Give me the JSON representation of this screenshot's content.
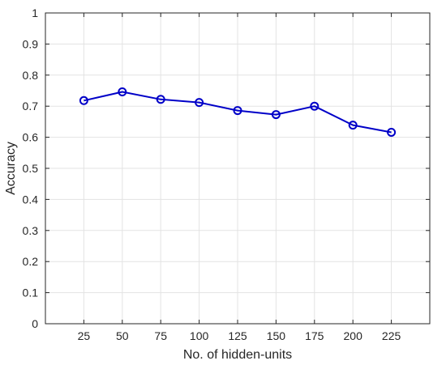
{
  "chart_data": {
    "type": "line",
    "title": "",
    "xlabel": "No. of hidden-units",
    "ylabel": "Accuracy",
    "x": [
      25,
      50,
      75,
      100,
      125,
      150,
      175,
      200,
      225
    ],
    "x_tick_labels": [
      "25",
      "50",
      "75",
      "100",
      "125",
      "150",
      "175",
      "200",
      "225"
    ],
    "xlim": [
      0,
      250
    ],
    "ylim": [
      0,
      1
    ],
    "y_ticks": [
      0,
      0.1,
      0.2,
      0.3,
      0.4,
      0.5,
      0.6,
      0.7,
      0.8,
      0.9,
      1
    ],
    "y_tick_labels": [
      "0",
      "0.1",
      "0.2",
      "0.3",
      "0.4",
      "0.5",
      "0.6",
      "0.7",
      "0.8",
      "0.9",
      "1"
    ],
    "grid": true,
    "legend": "none",
    "series": [
      {
        "values": [
          0.718,
          0.746,
          0.722,
          0.712,
          0.686,
          0.673,
          0.7,
          0.639,
          0.616
        ],
        "color": "#0000c8",
        "marker": "circle"
      }
    ]
  }
}
